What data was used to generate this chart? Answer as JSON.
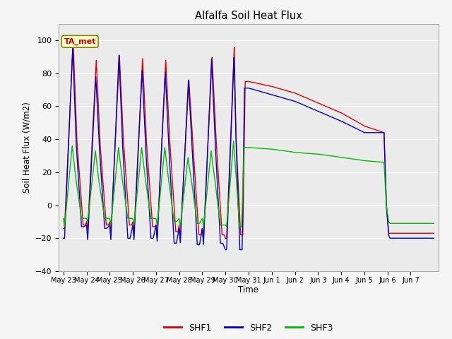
{
  "title": "Alfalfa Soil Heat Flux",
  "xlabel": "Time",
  "ylabel": "Soil Heat Flux (W/m2)",
  "ylim": [
    -40,
    110
  ],
  "background_color": "#f5f5f5",
  "plot_bg_color": "#ebebeb",
  "grid_color": "#ffffff",
  "annotation_text": "TA_met",
  "annotation_box_color": "#ffffcc",
  "annotation_border_color": "#888800",
  "annotation_text_color": "#cc0000",
  "shf1_color": "#dd0000",
  "shf2_color": "#0000cc",
  "shf3_color": "#00bb00",
  "x_tick_labels": [
    "May 23",
    "May 24",
    "May 25",
    "May 26",
    "May 27",
    "May 28",
    "May 29",
    "May 30",
    "May 31",
    "Jun 1",
    "Jun 2",
    "Jun 3",
    "Jun 4",
    "Jun 5",
    "Jun 6",
    "Jun 7"
  ],
  "legend_labels": [
    "SHF1",
    "SHF2",
    "SHF3"
  ]
}
